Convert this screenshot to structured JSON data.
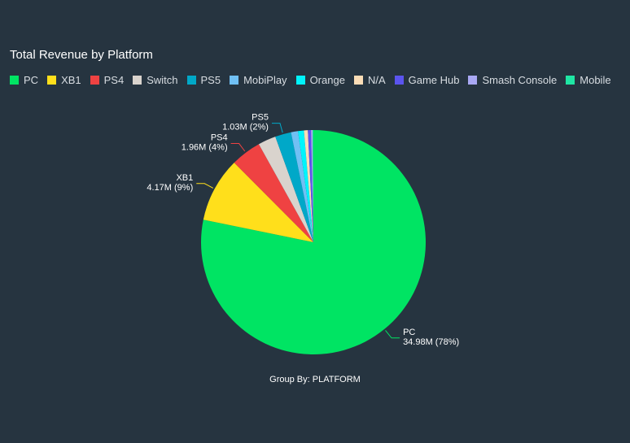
{
  "chart_data": {
    "type": "pie",
    "title": "Total Revenue by Platform",
    "legend_position": "top-left",
    "unit": "M",
    "slices": [
      {
        "name": "PC",
        "value": 34.98,
        "label": "34.98M (78%)",
        "color": "#00e463"
      },
      {
        "name": "XB1",
        "value": 4.17,
        "label": "4.17M (9%)",
        "color": "#ffdf1b"
      },
      {
        "name": "PS4",
        "value": 1.96,
        "label": "1.96M (4%)",
        "color": "#ef4242"
      },
      {
        "name": "Switch",
        "value": 1.15,
        "color": "#d9d3cd"
      },
      {
        "name": "PS5",
        "value": 1.03,
        "label": "1.03M (2%)",
        "color": "#00a8c8"
      },
      {
        "name": "MobiPlay",
        "value": 0.45,
        "color": "#70c0f4"
      },
      {
        "name": "Orange",
        "value": 0.38,
        "color": "#00f4fc"
      },
      {
        "name": "N/A",
        "value": 0.25,
        "color": "#fadcb6"
      },
      {
        "name": "Game Hub",
        "value": 0.2,
        "color": "#5b54ef"
      },
      {
        "name": "Smash Console",
        "value": 0.1,
        "color": "#a9a8f4"
      },
      {
        "name": "Mobile",
        "value": 0.05,
        "color": "#1fe6a4"
      }
    ],
    "footer": "Group By: PLATFORM"
  }
}
